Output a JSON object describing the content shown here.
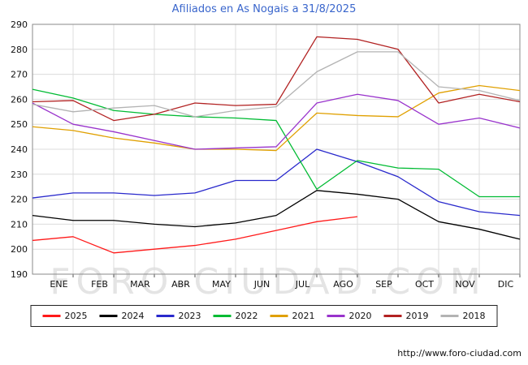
{
  "page": {
    "title": "Afiliados en As Nogais a 31/8/2025",
    "watermark": "FORO-CIUDAD.COM",
    "source_url": "http://www.foro-ciudad.com"
  },
  "chart_data": {
    "type": "line",
    "title": "Afiliados en As Nogais a 31/8/2025",
    "xlabel": "",
    "ylabel": "",
    "x_labels": [
      "ENE",
      "FEB",
      "MAR",
      "ABR",
      "MAY",
      "JUN",
      "JUL",
      "AGO",
      "SEP",
      "OCT",
      "NOV",
      "DIC"
    ],
    "ylim": [
      190,
      290
    ],
    "y_tick_step": 10,
    "grid": true,
    "legend_position": "bottom",
    "series": [
      {
        "name": "2025",
        "color": "#ff1a1a",
        "values": [
          203.5,
          205,
          198.5,
          200,
          201.5,
          204,
          207.5,
          211,
          213
        ]
      },
      {
        "name": "2024",
        "color": "#000000",
        "values": [
          213.5,
          211.5,
          211.5,
          210,
          209,
          210.5,
          213.5,
          223.5,
          222,
          220,
          211,
          208,
          204
        ]
      },
      {
        "name": "2023",
        "color": "#2929cc",
        "values": [
          220.5,
          222.5,
          222.5,
          221.5,
          222.5,
          227.5,
          227.5,
          240,
          235,
          229,
          219,
          215,
          213.5
        ]
      },
      {
        "name": "2022",
        "color": "#00bb33",
        "values": [
          264,
          260.5,
          255.5,
          254,
          253,
          252.5,
          251.5,
          224,
          235.5,
          232.5,
          232,
          221,
          221
        ]
      },
      {
        "name": "2021",
        "color": "#e0a000",
        "values": [
          249,
          247.5,
          244.5,
          242.5,
          240,
          240,
          239.5,
          254.5,
          253.5,
          253,
          262.5,
          265.5,
          263.5
        ]
      },
      {
        "name": "2020",
        "color": "#9933cc",
        "values": [
          258.5,
          250,
          247,
          243.5,
          240,
          240.5,
          241,
          258.5,
          262,
          259.5,
          250,
          252.5,
          248.5
        ]
      },
      {
        "name": "2019",
        "color": "#b22222",
        "values": [
          259,
          259.5,
          251.5,
          254,
          258.5,
          257.5,
          258,
          285,
          284,
          280,
          258.5,
          262,
          259
        ]
      },
      {
        "name": "2018",
        "color": "#b3b3b3",
        "values": [
          258,
          255,
          256.5,
          257.5,
          253,
          255.5,
          257,
          271,
          279,
          279,
          265,
          263.5,
          259.5
        ]
      }
    ]
  }
}
